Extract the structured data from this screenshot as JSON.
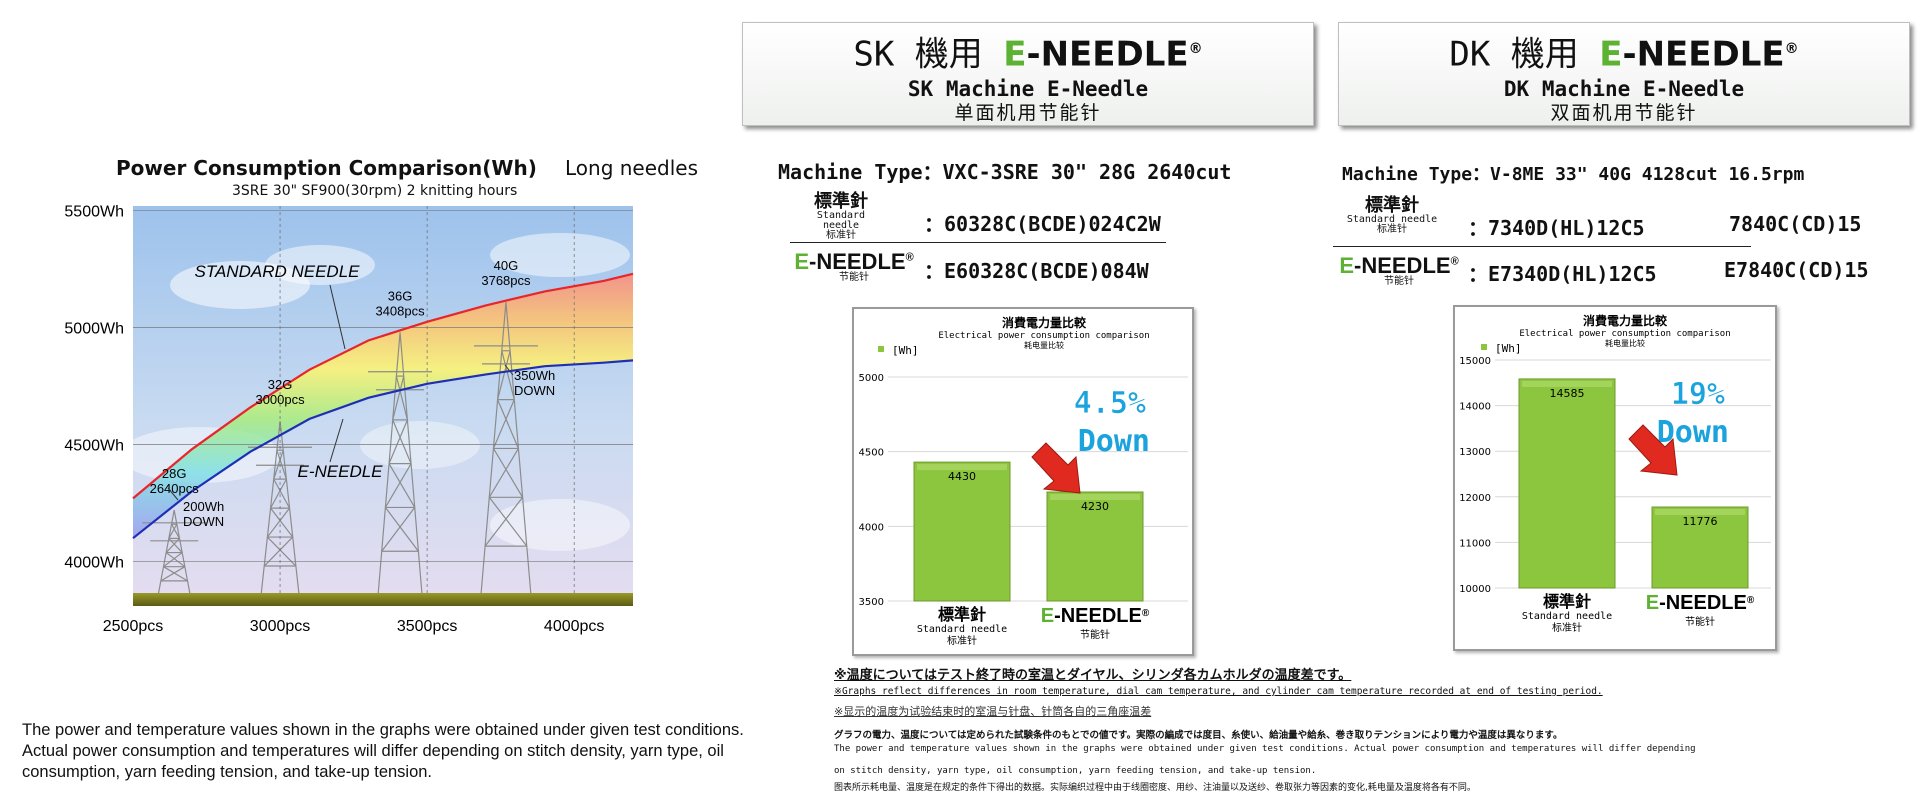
{
  "left_chart": {
    "title": "Power Consumption Comparison(Wh)",
    "note": "Long needles",
    "subtitle": "3SRE 30\" SF900(30rpm) 2 knitting hours"
  },
  "chart_data": [
    {
      "type": "line",
      "title": "Power Consumption Comparison(Wh)",
      "subtitle": "3SRE 30\" SF900(30rpm) 2 knitting hours",
      "y_tick_labels": [
        "5500Wh",
        "5000Wh",
        "4500Wh",
        "4000Wh"
      ],
      "x_tick_labels": [
        "2500pcs",
        "3000pcs",
        "3500pcs",
        "4000pcs"
      ],
      "xlim": [
        2500,
        4200
      ],
      "ylim": [
        3810,
        5520
      ],
      "series": [
        {
          "name": "STANDARD NEEDLE",
          "color": "#e8262a",
          "x": [
            2500,
            2700,
            2900,
            3100,
            3300,
            3500,
            3700,
            3900,
            4100,
            4200
          ],
          "y": [
            4270,
            4480,
            4660,
            4820,
            4945,
            5025,
            5095,
            5155,
            5200,
            5230
          ]
        },
        {
          "name": "E-NEEDLE",
          "color": "#1f2fb5",
          "x": [
            2500,
            2700,
            2900,
            3100,
            3300,
            3500,
            3700,
            3900,
            4100,
            4200
          ],
          "y": [
            4100,
            4300,
            4470,
            4610,
            4700,
            4760,
            4800,
            4835,
            4850,
            4860
          ]
        }
      ],
      "gauge_annotations": [
        {
          "gauge": "28G",
          "count": "2640pcs",
          "x": 2640
        },
        {
          "gauge": "32G",
          "count": "3000pcs",
          "x": 3000
        },
        {
          "gauge": "36G",
          "count": "3408pcs",
          "x": 3408
        },
        {
          "gauge": "40G",
          "count": "3768pcs",
          "x": 3768
        }
      ],
      "diff_annotations": [
        {
          "value": "200Wh",
          "label": "DOWN"
        },
        {
          "value": "350Wh",
          "label": "DOWN"
        }
      ]
    },
    {
      "type": "bar",
      "title_jp": "消費電力量比較",
      "title_en": "Electrical power consumption comparison",
      "title_cn": "耗电量比较",
      "legend_unit": "[Wh]",
      "categories": [
        "標準針",
        "E-NEEDLE"
      ],
      "values": [
        4430,
        4230
      ],
      "ylim": [
        3500,
        5000
      ],
      "y_ticks": [
        3500,
        4000,
        4500,
        5000
      ],
      "reduction_pct": "4.5%",
      "reduction_word": "Down"
    },
    {
      "type": "bar",
      "title_jp": "消費電力量比較",
      "title_en": "Electrical power consumption comparison",
      "title_cn": "耗电量比较",
      "legend_unit": "[Wh]",
      "categories": [
        "標準針",
        "E-NEEDLE"
      ],
      "values": [
        14585,
        11776
      ],
      "ylim": [
        10000,
        15000
      ],
      "y_ticks": [
        10000,
        11000,
        12000,
        13000,
        14000,
        15000
      ],
      "reduction_pct": "19%",
      "reduction_word": "Down"
    }
  ],
  "left_footnote": "The power and temperature values shown in the graphs were obtained under given test conditions.  Actual power consumption and temperatures will differ depending on stitch density, yarn type, oil consumption, yarn feeding tension, and take-up tension.",
  "sk": {
    "header_prefix": "SK 機用 ",
    "header_e": "E",
    "header_rest": "-NEEDLE",
    "header_reg": "®",
    "header_en": "SK Machine E-Needle",
    "header_cn": "单面机用节能针",
    "machine_type": "Machine Type：VXC-3SRE  30\"   28G  2640cut",
    "std_jp": "標準針",
    "std_en": "Standard needle",
    "std_cn": "标准针",
    "std_value": "：60328C(BCDE)024C2W",
    "en_e": "E",
    "en_rest": "-NEEDLE",
    "en_reg": "®",
    "en_cn": "节能针",
    "en_value": "：E60328C(BCDE)084W",
    "bar_std_jp": "標準針",
    "bar_std_en": "Standard needle",
    "bar_std_cn": "标准针",
    "bar_en_e": "E",
    "bar_en_rest": "-NEEDLE",
    "bar_en_reg": "®",
    "bar_en_cn": "节能针"
  },
  "dk": {
    "header_prefix": "DK 機用 ",
    "header_e": "E",
    "header_rest": "-NEEDLE",
    "header_reg": "®",
    "header_en": "DK Machine E-Needle",
    "header_cn": "双面机用节能针",
    "machine_type": "Machine Type：V-8ME  33\" 40G  4128cut  16.5rpm",
    "std_jp": "標準針",
    "std_en": "Standard needle",
    "std_cn": "标准针",
    "std_value1": "：7340D(HL)12C5",
    "std_value2": "7840C(CD)15",
    "en_e": "E",
    "en_rest": "-NEEDLE",
    "en_reg": "®",
    "en_cn": "节能针",
    "en_value1": "：E7340D(HL)12C5",
    "en_value2": "E7840C(CD)15",
    "bar_std_jp": "標準針",
    "bar_std_en": "Standard needle",
    "bar_std_cn": "标准针",
    "bar_en_e": "E",
    "bar_en_rest": "-NEEDLE",
    "bar_en_reg": "®",
    "bar_en_cn": "节能针"
  },
  "notes": {
    "n1": "※温度についてはテスト終了時の室温とダイヤル、シリンダ各カムホルダの温度差です。",
    "n2": "※Graphs reflect differences in room temperature, dial cam temperature, and cylinder cam temperature recorded at end of testing period.",
    "n3": "※显示的温度为试验结束时的室温与针盘、针筒各自的三角座温差",
    "n4": "グラフの電力、温度については定められた試験条件のもとでの値です。実際の編成では度目、糸使い、給油量や給糸、巻き取りテンションにより電力や温度は異なります。",
    "n5": "The power and temperature values shown in the graphs were obtained under given test conditions. Actual power consumption and temperatures will differ depending",
    "n6": "on stitch density, yarn type, oil consumption, yarn feeding tension, and take-up tension.",
    "n7": "图表所示耗电量、温度是在规定的条件下得出的数据。实际编织过程中由于线圈密度、用纱、注油量以及送纱、卷取张力等因素的变化,耗电量及温度将各有不同。"
  },
  "colors": {
    "brand_green": "#5db233",
    "bar_green": "#8cc63e",
    "std_line": "#e8262a",
    "eneedle_line": "#1f2fb5",
    "down_text": "#1aa3dc",
    "arrow_red": "#e02a20"
  }
}
